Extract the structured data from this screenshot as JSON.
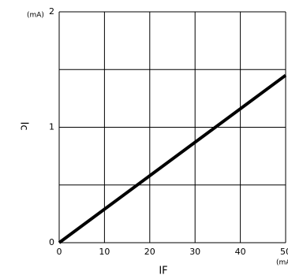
{
  "chart_data": {
    "type": "line",
    "x": [
      0,
      50
    ],
    "series": [
      {
        "name": "Ic",
        "color": "#000000",
        "values": [
          0,
          1.45
        ]
      }
    ],
    "xlim": [
      0,
      50
    ],
    "xticks": [
      0,
      10,
      20,
      30,
      40,
      50
    ],
    "ylim": [
      0,
      2
    ],
    "yticks": [
      0,
      1,
      2
    ],
    "minor_yticks": [
      0.5,
      1.5
    ],
    "y_label": "Ic",
    "x_label": "IF",
    "y_unit": "(mA)",
    "x_unit": "(mA)",
    "grid": true
  }
}
